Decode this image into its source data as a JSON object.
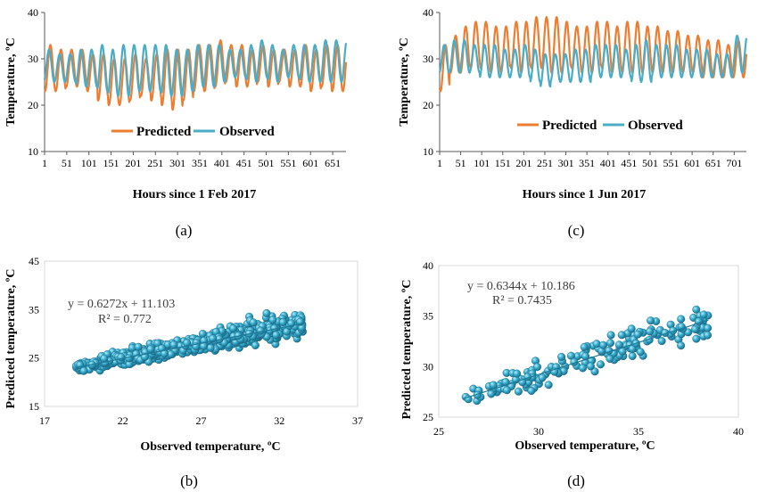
{
  "colors": {
    "predicted": "#ED7D31",
    "observed": "#4BACC6",
    "scatter": "#2E9FBF",
    "axis": "#595959",
    "trend": "#1F7A99"
  },
  "chart_data": [
    {
      "id": "a",
      "type": "line",
      "panel_label": "(a)",
      "xlabel": "Hours since 1 Feb 2017",
      "ylabel": "Temperature, ºC",
      "xlim": [
        1,
        681
      ],
      "ylim": [
        10,
        40
      ],
      "y_ticks": [
        "10",
        "20",
        "30",
        "40"
      ],
      "x_ticks": [
        "1",
        "51",
        "101",
        "151",
        "201",
        "251",
        "301",
        "351",
        "401",
        "451",
        "501",
        "551",
        "601",
        "651"
      ],
      "x_tick_values": [
        1,
        51,
        101,
        151,
        201,
        251,
        301,
        351,
        401,
        451,
        501,
        551,
        601,
        651
      ],
      "legend": {
        "placement": "bottom-inside",
        "entries": [
          "Predicted",
          "Observed"
        ]
      },
      "series": [
        {
          "name": "Predicted",
          "daily_min": [
            23,
            23,
            24,
            24,
            23,
            21,
            20,
            20,
            21,
            22,
            21,
            20,
            19,
            21,
            23,
            23,
            24,
            25,
            24,
            24,
            25,
            24,
            25,
            24,
            24,
            23,
            24,
            23
          ],
          "daily_max": [
            33,
            32,
            32,
            32,
            31,
            31,
            30,
            30,
            31,
            30,
            31,
            32,
            32,
            32,
            33,
            33,
            34,
            33,
            33,
            32,
            33,
            32,
            32,
            32,
            33,
            32,
            33,
            33
          ],
          "phase_hours": 1
        },
        {
          "name": "Observed",
          "daily_min": [
            25,
            25,
            25,
            24,
            24,
            23,
            22,
            22,
            23,
            23,
            23,
            22,
            22,
            23,
            24,
            24,
            25,
            26,
            26,
            25,
            26,
            25,
            26,
            26,
            25,
            25,
            25,
            25
          ],
          "daily_max": [
            32,
            31,
            31,
            32,
            32,
            33,
            32,
            33,
            33,
            33,
            33,
            33,
            32,
            32,
            33,
            33,
            33,
            32,
            32,
            33,
            34,
            33,
            32,
            33,
            33,
            33,
            34,
            34
          ],
          "phase_hours": -2
        }
      ]
    },
    {
      "id": "c",
      "type": "line",
      "panel_label": "(c)",
      "xlabel": "Hours since 1 Jun 2017",
      "ylabel": "Temperature, ºC",
      "xlim": [
        1,
        730
      ],
      "ylim": [
        10,
        40
      ],
      "y_ticks": [
        "10",
        "20",
        "30",
        "40"
      ],
      "x_ticks": [
        "1",
        "51",
        "101",
        "151",
        "201",
        "251",
        "301",
        "351",
        "401",
        "451",
        "501",
        "551",
        "601",
        "651",
        "701"
      ],
      "x_tick_values": [
        1,
        51,
        101,
        151,
        201,
        251,
        301,
        351,
        401,
        451,
        501,
        551,
        601,
        651,
        701
      ],
      "legend": {
        "placement": "bottom-inside",
        "entries": [
          "Predicted",
          "Observed"
        ]
      },
      "series": [
        {
          "name": "Predicted",
          "daily_min": [
            23,
            27,
            27,
            28,
            28,
            27,
            27,
            28,
            27,
            28,
            28,
            27,
            27,
            28,
            27,
            27,
            28,
            27,
            27,
            27,
            27,
            27,
            27,
            27,
            27,
            27,
            26,
            26,
            26,
            26
          ],
          "daily_max": [
            33,
            35,
            37,
            38,
            38,
            37,
            37,
            38,
            38,
            39,
            39,
            39,
            38,
            37,
            37,
            38,
            38,
            37,
            38,
            38,
            37,
            37,
            36,
            36,
            35,
            35,
            34,
            34,
            33,
            34
          ],
          "phase_hours": 2
        },
        {
          "name": "Observed",
          "daily_min": [
            27,
            27,
            27,
            27,
            26,
            26,
            26,
            26,
            26,
            25,
            24,
            25,
            25,
            25,
            25,
            26,
            26,
            26,
            26,
            25,
            25,
            26,
            26,
            26,
            26,
            26,
            26,
            26,
            26,
            27
          ],
          "daily_max": [
            33,
            34,
            34,
            33,
            33,
            33,
            32,
            32,
            33,
            32,
            31,
            31,
            31,
            32,
            32,
            33,
            33,
            33,
            32,
            33,
            34,
            33,
            33,
            33,
            32,
            32,
            32,
            31,
            31,
            35
          ],
          "phase_hours": -1
        }
      ]
    },
    {
      "id": "b",
      "type": "scatter",
      "panel_label": "(b)",
      "xlabel": "Observed temperature, ºC",
      "ylabel": "Predicted temperature, ºC",
      "xlim": [
        17,
        37
      ],
      "ylim": [
        15,
        45
      ],
      "x_ticks": [
        "17",
        "22",
        "27",
        "32",
        "37"
      ],
      "y_ticks": [
        "15",
        "25",
        "35",
        "45"
      ],
      "trendline": {
        "slope": 0.6272,
        "intercept": 11.103,
        "x_range": [
          19,
          33.5
        ]
      },
      "equation": "y = 0.6272x + 11.103",
      "r_squared": "R² = 0.772",
      "cloud": {
        "n": 680,
        "x_range": [
          19,
          33.5
        ],
        "slope": 0.6272,
        "intercept": 11.103,
        "spread": 1.8,
        "seed": 7
      }
    },
    {
      "id": "d",
      "type": "scatter",
      "panel_label": "(d)",
      "xlabel": "Observed temperature, ºC",
      "ylabel": "Predicted temperature, ºC",
      "xlim": [
        25,
        40
      ],
      "ylim": [
        25,
        40
      ],
      "x_ticks": [
        "25",
        "30",
        "35",
        "40"
      ],
      "y_ticks": [
        "25",
        "30",
        "35",
        "40"
      ],
      "trendline": {
        "slope": 0.6344,
        "intercept": 10.186,
        "x_range": [
          26.2,
          38.5
        ]
      },
      "equation": "y = 0.6344x + 10.186",
      "r_squared": "R² = 0.7435",
      "cloud": {
        "n": 170,
        "x_range": [
          26.2,
          38.5
        ],
        "slope": 0.6344,
        "intercept": 10.186,
        "spread": 1.3,
        "seed": 13
      }
    }
  ]
}
